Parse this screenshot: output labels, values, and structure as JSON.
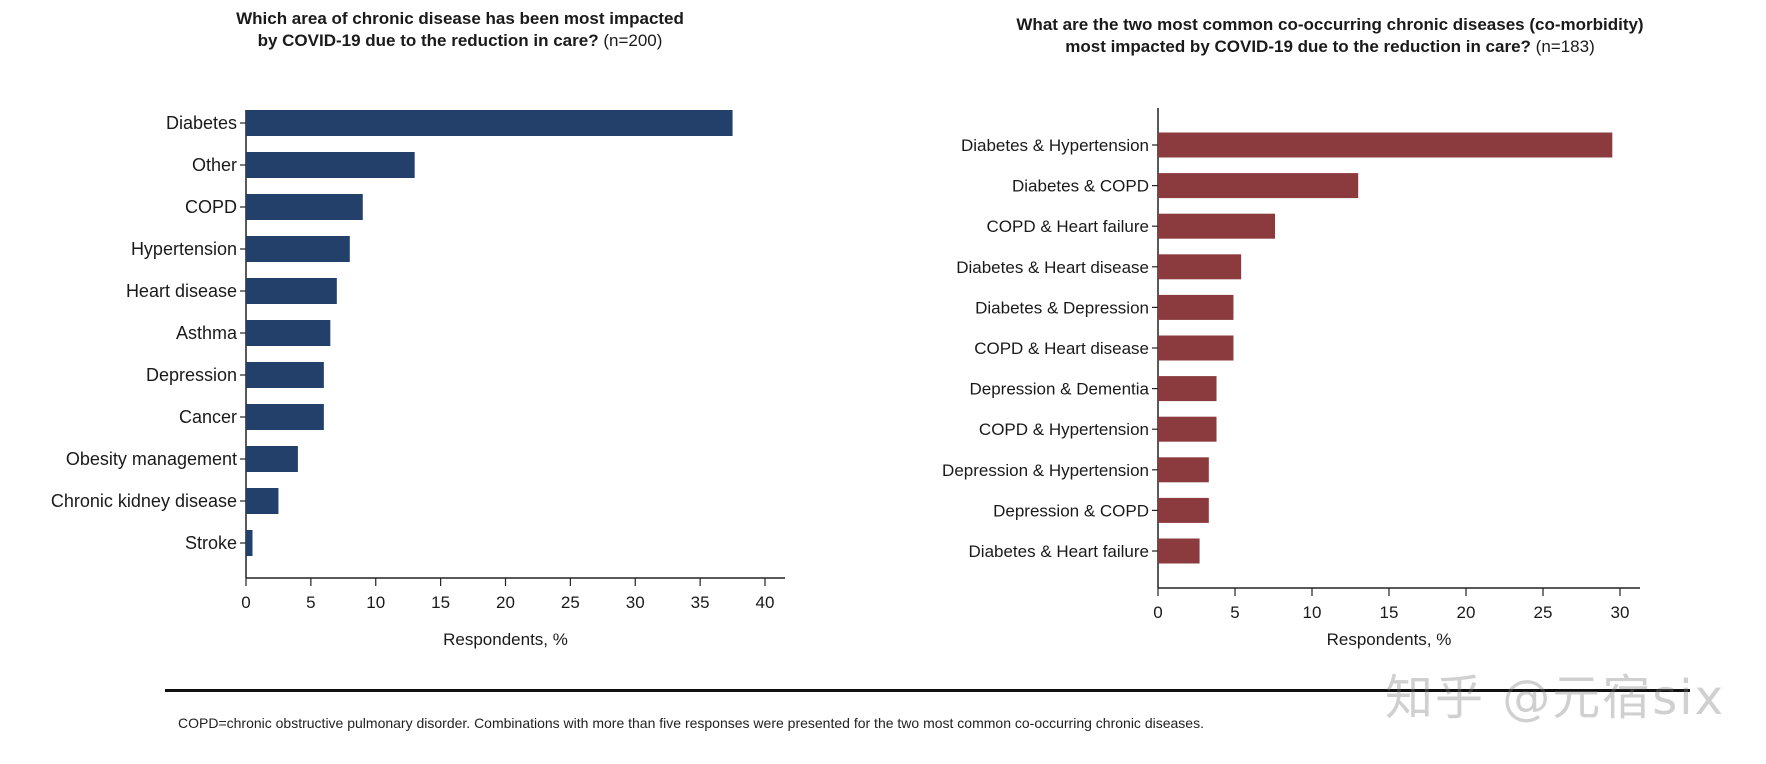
{
  "chart_data": [
    {
      "type": "bar",
      "orientation": "horizontal",
      "title": "Which area of chronic disease has been most impacted by COVID-19 due to the reduction in care?",
      "title_note": "(n=200)",
      "categories": [
        "Diabetes",
        "Other",
        "COPD",
        "Hypertension",
        "Heart disease",
        "Asthma",
        "Depression",
        "Cancer",
        "Obesity management",
        "Chronic kidney disease",
        "Stroke"
      ],
      "values": [
        37.5,
        13,
        9,
        8,
        7,
        6.5,
        6,
        6,
        4,
        2.5,
        0.5
      ],
      "xlabel": "Respondents, %",
      "xlim": [
        0,
        40
      ],
      "xticks": [
        0,
        5,
        10,
        15,
        20,
        25,
        30,
        35,
        40
      ],
      "color": "#22406a"
    },
    {
      "type": "bar",
      "orientation": "horizontal",
      "title": "What are the two most common co-occurring chronic diseases (co-morbidity) most impacted by COVID-19 due to the reduction in care?",
      "title_note": "(n=183)",
      "categories": [
        "Diabetes & Hypertension",
        "Diabetes & COPD",
        "COPD & Heart failure",
        "Diabetes & Heart disease",
        "Diabetes & Depression",
        "COPD & Heart disease",
        "Depression & Dementia",
        "COPD & Hypertension",
        "Depression & Hypertension",
        "Depression & COPD",
        "Diabetes & Heart failure"
      ],
      "values": [
        29.5,
        13,
        7.6,
        5.4,
        4.9,
        4.9,
        3.8,
        3.8,
        3.3,
        3.3,
        2.7
      ],
      "xlabel": "Respondents, %",
      "xlim": [
        0,
        30
      ],
      "xticks": [
        0,
        5,
        10,
        15,
        20,
        25,
        30
      ],
      "color": "#8b3a3e"
    }
  ],
  "titles": {
    "left_line1": "Which area of chronic disease has been most impacted",
    "left_line2": "by COVID-19 due to the reduction in care?",
    "left_n": "(n=200)",
    "right_line1": "What are the two most common co-occurring chronic diseases (co-morbidity)",
    "right_line2": "most impacted by COVID-19 due to the reduction in care?",
    "right_n": "(n=183)"
  },
  "footnote": "COPD=chronic obstructive pulmonary disorder. Combinations with more than five responses were presented for the two most common co-occurring chronic diseases.",
  "watermark": "知乎 @元宿six"
}
